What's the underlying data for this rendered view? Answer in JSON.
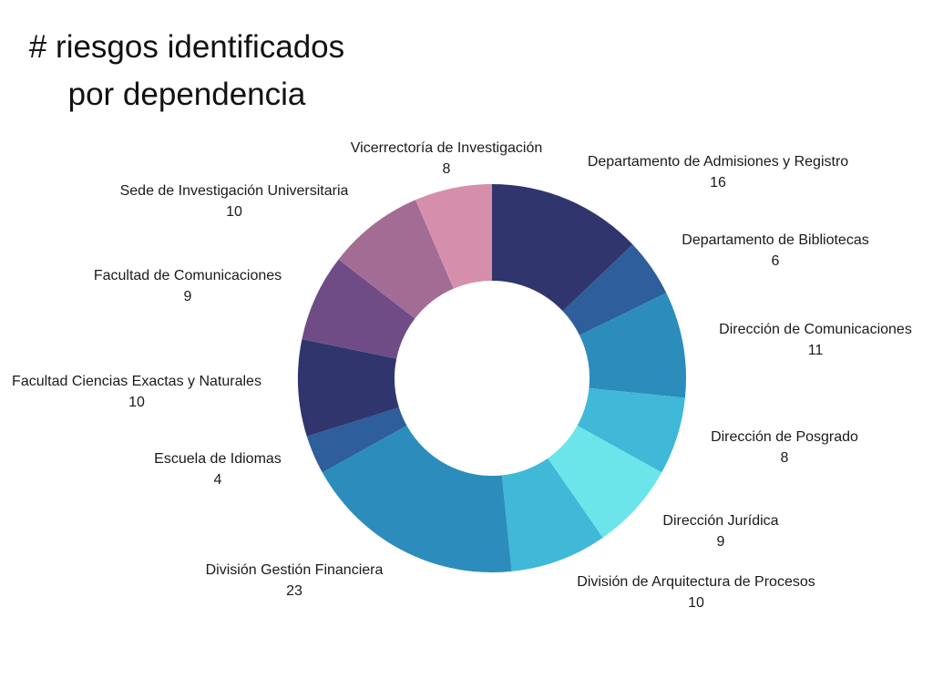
{
  "chart_data": {
    "type": "donut",
    "title_lines": [
      "# riesgos identificados",
      "por dependencia"
    ],
    "slices": [
      {
        "label": "Departamento de Admisiones y Registro",
        "value": 16,
        "color": "#31356e"
      },
      {
        "label": "Departamento de Bibliotecas",
        "value": 6,
        "color": "#2e5e9b"
      },
      {
        "label": "Dirección de Comunicaciones",
        "value": 11,
        "color": "#2c8dbc"
      },
      {
        "label": "Dirección de Posgrado",
        "value": 8,
        "color": "#40b8d8"
      },
      {
        "label": "Dirección Jurídica",
        "value": 9,
        "color": "#6be5ea"
      },
      {
        "label": "División de Arquitectura de Procesos",
        "value": 10,
        "color": "#40b8d8"
      },
      {
        "label": "División Gestión Financiera",
        "value": 23,
        "color": "#2c8dbc"
      },
      {
        "label": "Escuela de Idiomas",
        "value": 4,
        "color": "#2e5e9b"
      },
      {
        "label": "Facultad Ciencias Exactas y Naturales",
        "value": 10,
        "color": "#31356e"
      },
      {
        "label": "Facultad de Comunicaciones",
        "value": 9,
        "color": "#704c87"
      },
      {
        "label": "Sede de Investigación Universitaria",
        "value": 10,
        "color": "#a36c95"
      },
      {
        "label": "Vicerrectoría de Investigación",
        "value": 8,
        "color": "#d58fab"
      }
    ]
  }
}
